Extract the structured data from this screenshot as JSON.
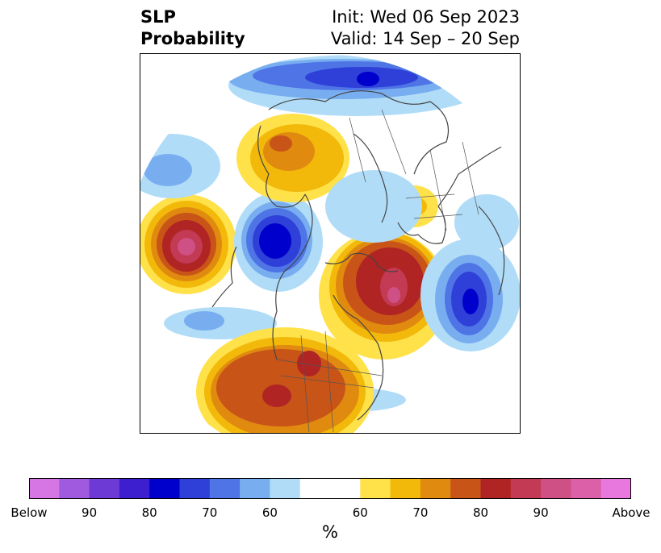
{
  "header": {
    "title_line1": "SLP",
    "title_line2": "Probability",
    "init_text": "Init: Wed 06 Sep 2023",
    "valid_text": "Valid: 14 Sep – 20 Sep"
  },
  "colorbar": {
    "unit": "%",
    "colors": [
      "#d676e4",
      "#a05ae0",
      "#6d3ad6",
      "#3d1fd0",
      "#0000cc",
      "#2e40d8",
      "#4e74e6",
      "#78aef0",
      "#b0dcf8",
      "#ffffff",
      "#ffe14a",
      "#f2b90a",
      "#e08a10",
      "#c85418",
      "#b02424",
      "#c23a54",
      "#cf5084",
      "#dc60a8",
      "#e878de"
    ],
    "tick_labels": [
      "Below",
      "90",
      "80",
      "70",
      "60",
      "60",
      "70",
      "80",
      "90",
      "Above"
    ]
  },
  "palette": {
    "land_line": "#444444",
    "frame": "#000000"
  }
}
